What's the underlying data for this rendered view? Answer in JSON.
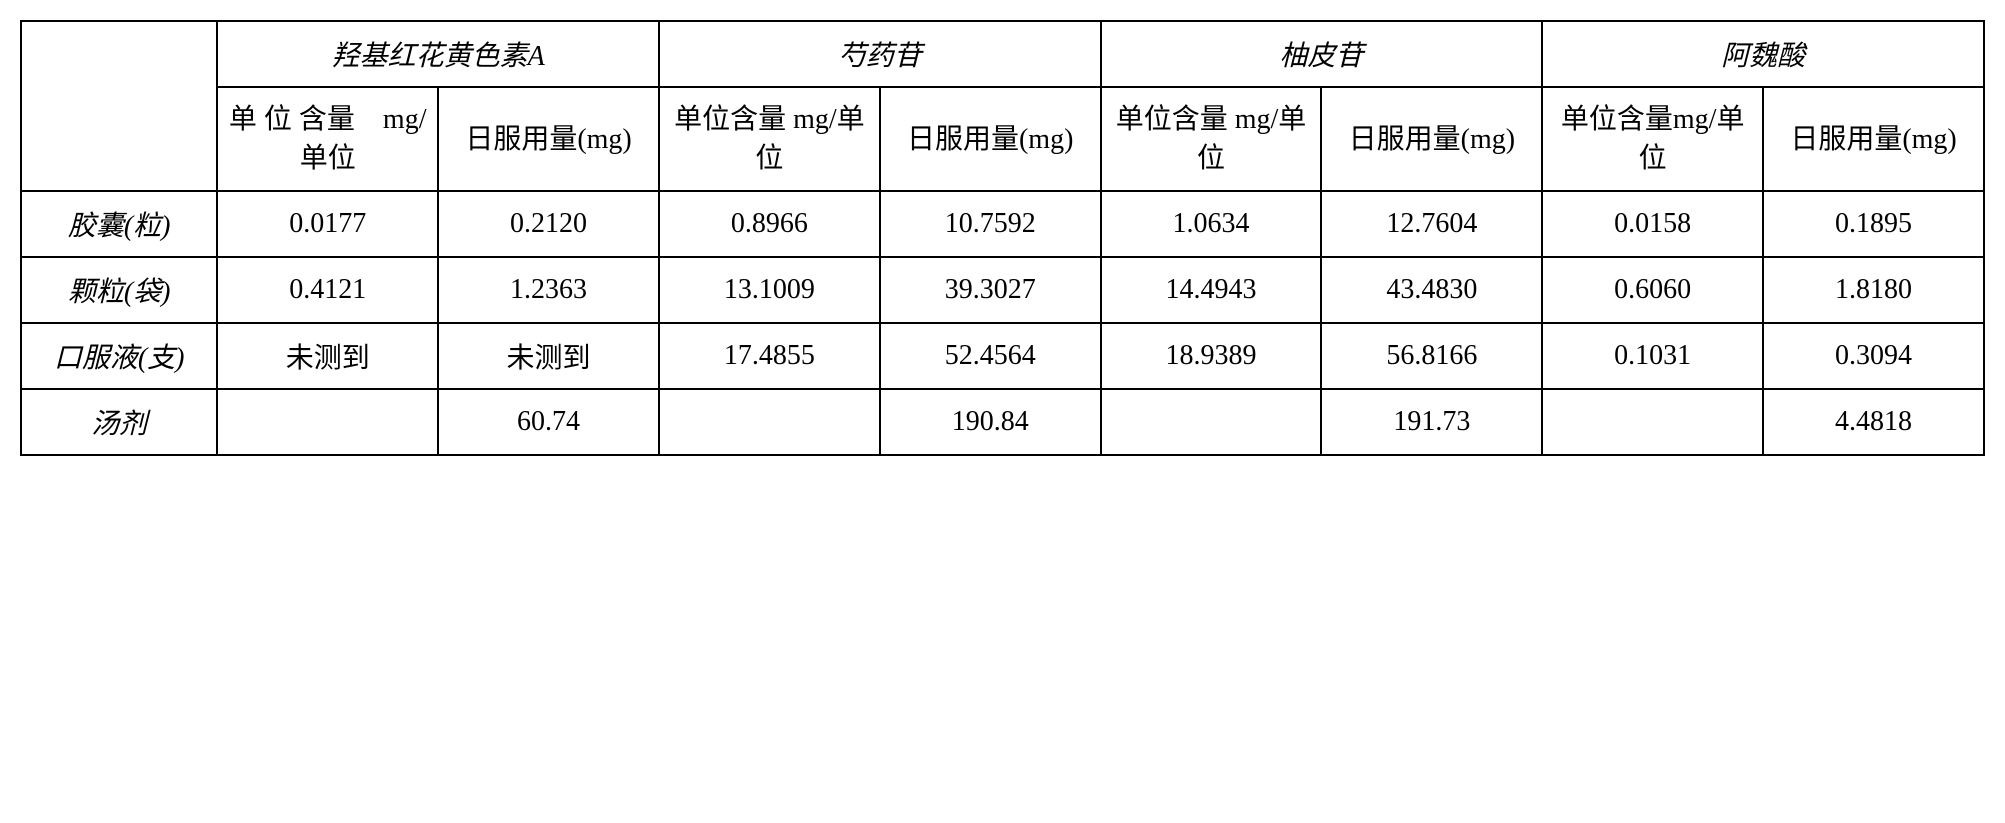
{
  "table": {
    "columnGroups": [
      "羟基红花黄色素A",
      "芍药苷",
      "柚皮苷",
      "阿魏酸"
    ],
    "subHeaders": {
      "unit": "单位含量 mg/单位",
      "unitAlt": "单位含量mg/单位",
      "unitSpaced": "单 位 含量　mg/单位",
      "daily": "日服用量(mg)"
    },
    "rowHeaders": [
      "胶囊(粒)",
      "颗粒(袋)",
      "口服液(支)",
      "汤剂"
    ],
    "rows": [
      [
        "0.0177",
        "0.2120",
        "0.8966",
        "10.7592",
        "1.0634",
        "12.7604",
        "0.0158",
        "0.1895"
      ],
      [
        "0.4121",
        "1.2363",
        "13.1009",
        "39.3027",
        "14.4943",
        "43.4830",
        "0.6060",
        "1.8180"
      ],
      [
        "未测到",
        "未测到",
        "17.4855",
        "52.4564",
        "18.9389",
        "56.8166",
        "0.1031",
        "0.3094"
      ],
      [
        "",
        "60.74",
        "",
        "190.84",
        "",
        "191.73",
        "",
        "4.4818"
      ]
    ],
    "styling": {
      "borderColor": "#000000",
      "backgroundColor": "#ffffff",
      "textColor": "#000000",
      "fontSize": 28,
      "borderWidth": 2
    }
  }
}
